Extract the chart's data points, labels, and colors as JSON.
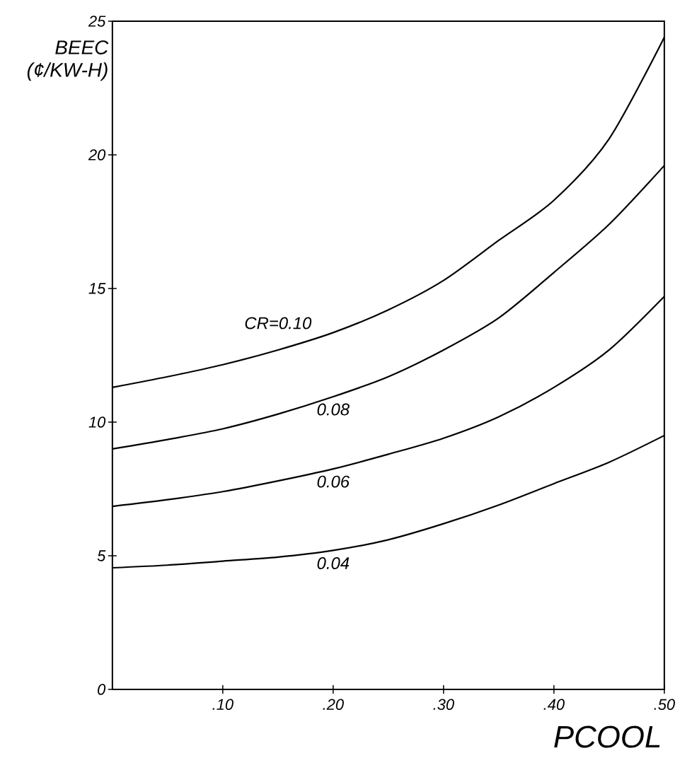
{
  "chart_data": {
    "type": "line",
    "xlabel": "PCOOL",
    "ylabel": "BEEC (¢/KW-H)",
    "x": [
      0,
      0.05,
      0.1,
      0.15,
      0.2,
      0.25,
      0.3,
      0.35,
      0.4,
      0.45,
      0.5
    ],
    "xlim": [
      0,
      0.5
    ],
    "ylim": [
      0,
      25
    ],
    "xticks": [
      {
        "value": 0.1,
        "label": ".10"
      },
      {
        "value": 0.2,
        "label": ".20"
      },
      {
        "value": 0.3,
        "label": ".30"
      },
      {
        "value": 0.4,
        "label": ".40"
      },
      {
        "value": 0.5,
        "label": ".50"
      }
    ],
    "yticks": [
      0,
      5,
      10,
      15,
      20,
      25
    ],
    "marker": "none",
    "line_style": "solid",
    "series": [
      {
        "name": "CR=0.10",
        "color": "#000000",
        "values": [
          11.3,
          11.7,
          12.15,
          12.7,
          13.35,
          14.2,
          15.3,
          16.8,
          18.3,
          20.6,
          24.4
        ]
      },
      {
        "name": "0.08",
        "color": "#000000",
        "values": [
          9.0,
          9.35,
          9.75,
          10.3,
          10.95,
          11.7,
          12.7,
          13.9,
          15.6,
          17.4,
          19.6
        ]
      },
      {
        "name": "0.06",
        "color": "#000000",
        "values": [
          6.85,
          7.1,
          7.4,
          7.8,
          8.25,
          8.8,
          9.4,
          10.2,
          11.3,
          12.7,
          14.7
        ]
      },
      {
        "name": "0.04",
        "color": "#000000",
        "values": [
          4.55,
          4.65,
          4.8,
          4.95,
          5.2,
          5.6,
          6.2,
          6.9,
          7.7,
          8.5,
          9.5
        ]
      }
    ]
  }
}
